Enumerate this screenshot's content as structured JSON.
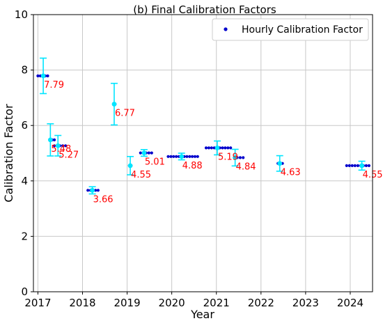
{
  "chart_data": {
    "type": "scatter",
    "title": "(b) Final Calibration Factors",
    "xlabel": "Year",
    "ylabel": "Calibration Factor",
    "xlim": [
      2016.9,
      2024.5
    ],
    "ylim": [
      0,
      10
    ],
    "xticks": [
      2017,
      2018,
      2019,
      2020,
      2021,
      2022,
      2023,
      2024
    ],
    "yticks": [
      0,
      2,
      4,
      6,
      8,
      10
    ],
    "grid": true,
    "legend": {
      "placement": "top-right",
      "entries": [
        "Hourly Calibration Factor"
      ]
    },
    "colors": {
      "hourly": "#0000cc",
      "mean": "#00e5ff",
      "annotation": "#ff0000",
      "grid": "#c8c8c8"
    },
    "hourly_segments": [
      {
        "x_start": 2017.0,
        "x_end": 2017.22,
        "y": 7.79
      },
      {
        "x_start": 2017.27,
        "x_end": 2017.37,
        "y": 5.48
      },
      {
        "x_start": 2017.37,
        "x_end": 2017.62,
        "y": 5.27
      },
      {
        "x_start": 2018.12,
        "x_end": 2018.35,
        "y": 3.66
      },
      {
        "x_start": 2018.7,
        "x_end": 2018.73,
        "y": 6.77
      },
      {
        "x_start": 2019.05,
        "x_end": 2019.09,
        "y": 4.55
      },
      {
        "x_start": 2019.3,
        "x_end": 2019.55,
        "y": 5.01
      },
      {
        "x_start": 2019.92,
        "x_end": 2020.58,
        "y": 4.88
      },
      {
        "x_start": 2020.77,
        "x_end": 2021.32,
        "y": 5.19
      },
      {
        "x_start": 2021.4,
        "x_end": 2021.6,
        "y": 4.84
      },
      {
        "x_start": 2022.38,
        "x_end": 2022.48,
        "y": 4.63
      },
      {
        "x_start": 2023.92,
        "x_end": 2024.42,
        "y": 4.55
      }
    ],
    "means": [
      {
        "x": 2017.12,
        "y": 7.79,
        "err": 0.64,
        "label": "7.79"
      },
      {
        "x": 2017.28,
        "y": 5.48,
        "err": 0.58,
        "label": "5.48"
      },
      {
        "x": 2017.45,
        "y": 5.27,
        "err": 0.37,
        "label": "5.27"
      },
      {
        "x": 2018.22,
        "y": 3.66,
        "err": 0.13,
        "label": "3.66"
      },
      {
        "x": 2018.71,
        "y": 6.77,
        "err": 0.75,
        "label": "6.77"
      },
      {
        "x": 2019.07,
        "y": 4.55,
        "err": 0.33,
        "label": "4.55"
      },
      {
        "x": 2019.38,
        "y": 5.01,
        "err": 0.12,
        "label": "5.01"
      },
      {
        "x": 2020.22,
        "y": 4.88,
        "err": 0.12,
        "label": "4.88"
      },
      {
        "x": 2021.02,
        "y": 5.19,
        "err": 0.25,
        "label": "5.19"
      },
      {
        "x": 2021.42,
        "y": 4.84,
        "err": 0.3,
        "label": "4.84"
      },
      {
        "x": 2022.42,
        "y": 4.63,
        "err": 0.28,
        "label": "4.63"
      },
      {
        "x": 2024.26,
        "y": 4.55,
        "err": 0.16,
        "label": "4.55"
      }
    ]
  }
}
